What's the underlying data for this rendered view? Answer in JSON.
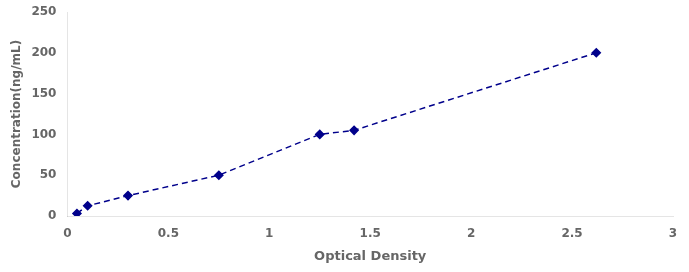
{
  "chart_data": {
    "type": "line",
    "x": [
      0.047,
      0.1,
      0.3,
      0.75,
      1.25,
      1.42,
      2.62
    ],
    "values": [
      3.125,
      12.5,
      25,
      50,
      100,
      105,
      200
    ],
    "color": "#00008B",
    "marker": "diamond",
    "line_style": "dashed",
    "xlabel": "Optical Density",
    "ylabel": "Concentration(ng/mL)",
    "xlim": [
      0,
      3
    ],
    "ylim": [
      0,
      250
    ],
    "xticks": [
      0,
      0.5,
      1,
      1.5,
      2,
      2.5,
      3
    ],
    "yticks": [
      0,
      50,
      100,
      150,
      200,
      250
    ],
    "grid": false
  }
}
